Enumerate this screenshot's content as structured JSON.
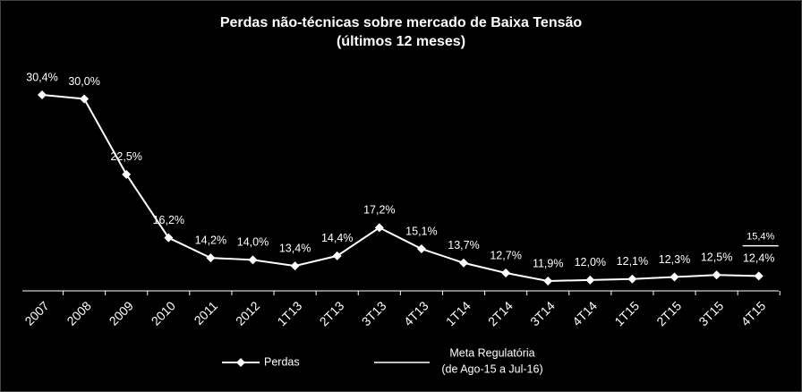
{
  "chart_data": {
    "type": "line",
    "title": "Perdas não-técnicas sobre mercado de Baixa Tensão",
    "subtitle": "(últimos 12 meses)",
    "categories": [
      "2007",
      "2008",
      "2009",
      "2010",
      "2011",
      "2012",
      "1T13",
      "2T13",
      "3T13",
      "4T13",
      "1T14",
      "2T14",
      "3T14",
      "4T14",
      "1T15",
      "2T15",
      "3T15",
      "4T15"
    ],
    "series": [
      {
        "name": "Perdas",
        "color": "#ffffff",
        "values": [
          30.4,
          30.0,
          22.5,
          16.2,
          14.2,
          14.0,
          13.4,
          14.4,
          17.2,
          15.1,
          13.7,
          12.7,
          11.9,
          12.0,
          12.1,
          12.3,
          12.5,
          12.4
        ],
        "value_labels": [
          "30,4%",
          "30,0%",
          "22,5%",
          "16,2%",
          "14,2%",
          "14,0%",
          "13,4%",
          "14,4%",
          "17,2%",
          "15,1%",
          "13,7%",
          "12,7%",
          "11,9%",
          "12,0%",
          "12,1%",
          "12,3%",
          "12,5%",
          "12,4%"
        ]
      }
    ],
    "target": {
      "name": [
        "Meta Regulatória",
        "(de Ago-15 a Jul-16)"
      ],
      "color": "#ffffff",
      "value": 15.4,
      "value_label": "15,4%"
    }
  }
}
